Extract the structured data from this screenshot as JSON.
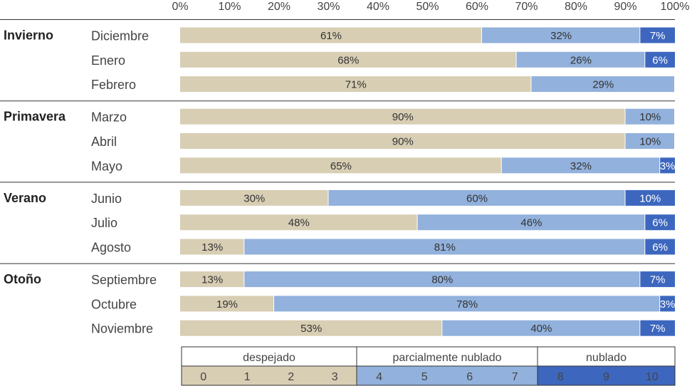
{
  "colors": {
    "despejado": "#d8ceb4",
    "parcial": "#92b1dc",
    "nublado": "#3d67bf",
    "rule": "#333333"
  },
  "chart_data": {
    "type": "bar",
    "orientation": "horizontal",
    "stacked": true,
    "x_ticks": [
      "0%",
      "10%",
      "20%",
      "30%",
      "40%",
      "50%",
      "60%",
      "70%",
      "80%",
      "90%",
      "100%"
    ],
    "xlim": [
      0,
      100
    ],
    "groups": [
      {
        "name": "Invierno",
        "months": [
          {
            "label": "Diciembre",
            "values": [
              61,
              32,
              7
            ],
            "labels": [
              "61%",
              "32%",
              "7%"
            ]
          },
          {
            "label": "Enero",
            "values": [
              68,
              26,
              6
            ],
            "labels": [
              "68%",
              "26%",
              "6%"
            ]
          },
          {
            "label": "Febrero",
            "values": [
              71,
              29,
              0
            ],
            "labels": [
              "71%",
              "29%",
              ""
            ]
          }
        ]
      },
      {
        "name": "Primavera",
        "months": [
          {
            "label": "Marzo",
            "values": [
              90,
              10,
              0
            ],
            "labels": [
              "90%",
              "10%",
              ""
            ]
          },
          {
            "label": "Abril",
            "values": [
              90,
              10,
              0
            ],
            "labels": [
              "90%",
              "10%",
              ""
            ]
          },
          {
            "label": "Mayo",
            "values": [
              65,
              32,
              3
            ],
            "labels": [
              "65%",
              "32%",
              "3%"
            ]
          }
        ]
      },
      {
        "name": "Verano",
        "months": [
          {
            "label": "Junio",
            "values": [
              30,
              60,
              10
            ],
            "labels": [
              "30%",
              "60%",
              "10%"
            ]
          },
          {
            "label": "Julio",
            "values": [
              48,
              46,
              6
            ],
            "labels": [
              "48%",
              "46%",
              "6%"
            ]
          },
          {
            "label": "Agosto",
            "values": [
              13,
              81,
              6
            ],
            "labels": [
              "13%",
              "81%",
              "6%"
            ]
          }
        ]
      },
      {
        "name": "Otoño",
        "months": [
          {
            "label": "Septiembre",
            "values": [
              13,
              80,
              7
            ],
            "labels": [
              "13%",
              "80%",
              "7%"
            ]
          },
          {
            "label": "Octubre",
            "values": [
              19,
              78,
              3
            ],
            "labels": [
              "19%",
              "78%",
              "3%"
            ]
          },
          {
            "label": "Noviembre",
            "values": [
              53,
              40,
              7
            ],
            "labels": [
              "53%",
              "40%",
              "7%"
            ]
          }
        ]
      }
    ],
    "series": [
      {
        "name": "despejado",
        "ticks": [
          "0",
          "1",
          "2",
          "3"
        ]
      },
      {
        "name": "parcialmente nublado",
        "ticks": [
          "4",
          "5",
          "6",
          "7"
        ]
      },
      {
        "name": "nublado",
        "ticks": [
          "8",
          "9",
          "10"
        ]
      }
    ],
    "legend_position": "bottom"
  }
}
